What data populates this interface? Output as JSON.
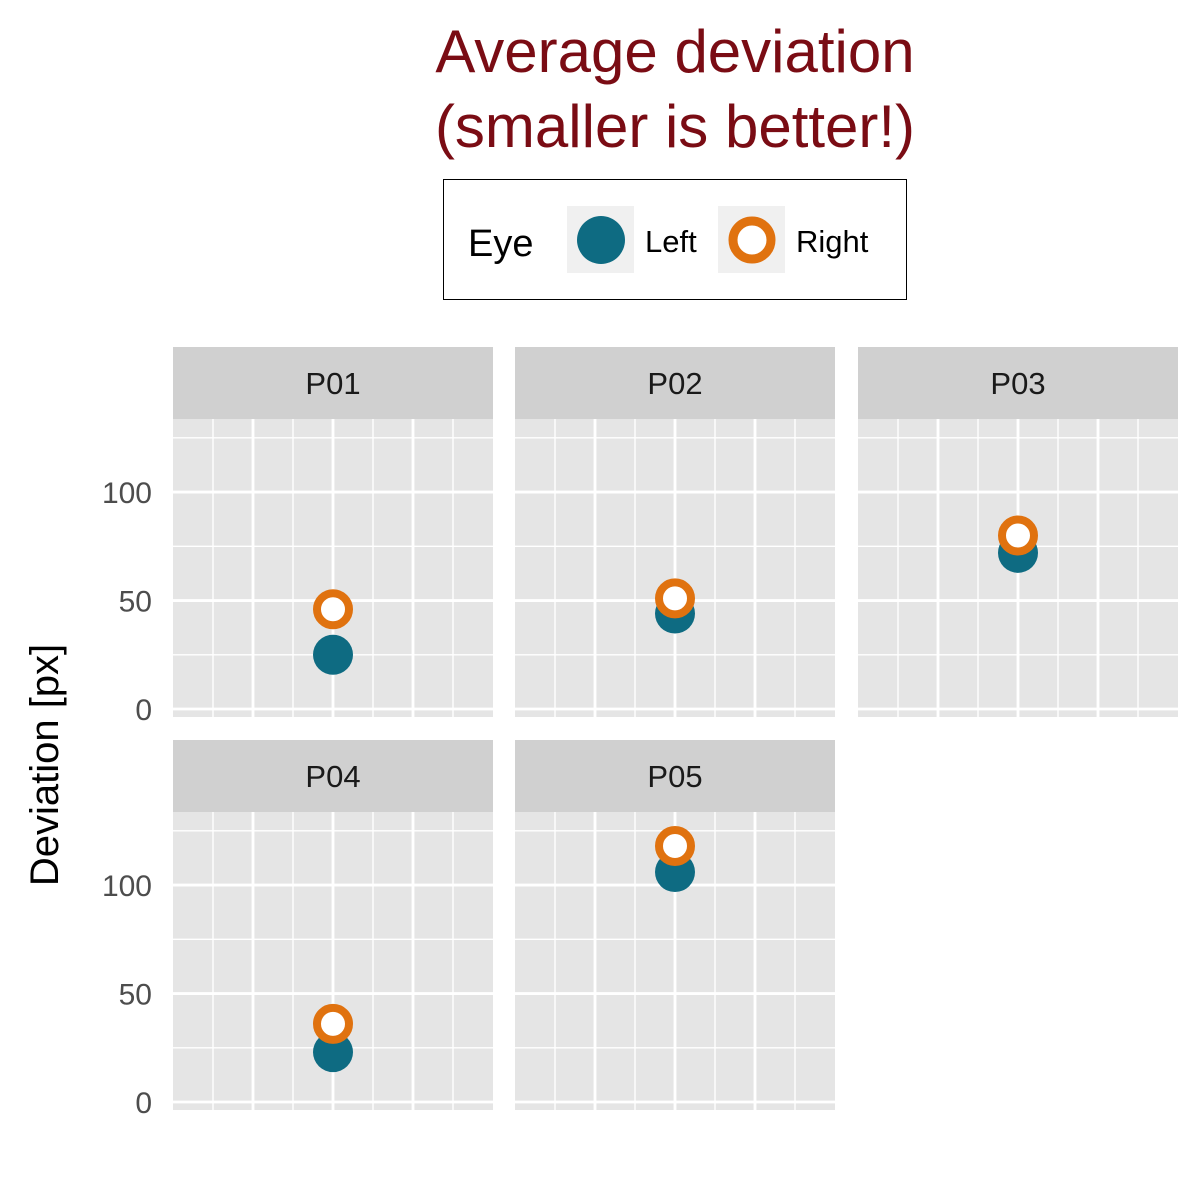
{
  "colors": {
    "title": "#7a0c14",
    "left": "#0e6b82",
    "right": "#e0720f",
    "panel_bg": "#e5e5e5",
    "strip_bg": "#d0d0d0",
    "grid": "#ffffff"
  },
  "chart_data": {
    "type": "scatter",
    "title_lines": [
      "Average deviation",
      "(smaller is better!)"
    ],
    "ylabel": "Deviation [px]",
    "xlabel": "",
    "ylim": [
      0,
      130
    ],
    "y_ticks": [
      0,
      50,
      100
    ],
    "grid": true,
    "legend": {
      "title": "Eye",
      "placement": "top",
      "entries": [
        {
          "label": "Left",
          "shape": "filled-circle",
          "color_key": "left"
        },
        {
          "label": "Right",
          "shape": "open-circle",
          "color_key": "right"
        }
      ]
    },
    "panels": [
      {
        "label": "P01",
        "left": 25,
        "right": 46
      },
      {
        "label": "P02",
        "left": 44,
        "right": 51
      },
      {
        "label": "P03",
        "left": 72,
        "right": 80
      },
      {
        "label": "P04",
        "left": 23,
        "right": 36
      },
      {
        "label": "P05",
        "left": 106,
        "right": 118
      }
    ]
  }
}
